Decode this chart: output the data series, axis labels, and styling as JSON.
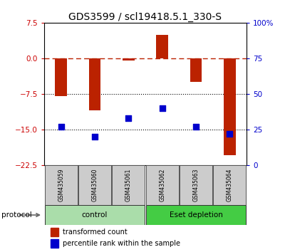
{
  "title": "GDS3599 / scl19418.5.1_330-S",
  "samples": [
    "GSM435059",
    "GSM435060",
    "GSM435061",
    "GSM435062",
    "GSM435063",
    "GSM435064"
  ],
  "red_values": [
    -8.0,
    -11.0,
    -0.5,
    5.0,
    -5.0,
    -20.5
  ],
  "blue_values": [
    27,
    20,
    33,
    40,
    27,
    22
  ],
  "ylim_left": [
    -22.5,
    7.5
  ],
  "ylim_right": [
    0,
    100
  ],
  "yticks_left": [
    7.5,
    0,
    -7.5,
    -15,
    -22.5
  ],
  "yticks_right": [
    100,
    75,
    50,
    25,
    0
  ],
  "ytick_labels_right": [
    "100%",
    "75",
    "50",
    "25",
    "0"
  ],
  "hlines_dotted": [
    -7.5,
    -15.0
  ],
  "hline_dash": 0.0,
  "bar_color": "#bb2200",
  "dot_color": "#0000cc",
  "bar_width": 0.35,
  "groups": [
    {
      "label": "control",
      "samples": [
        0,
        1,
        2
      ],
      "color": "#aaddaa"
    },
    {
      "label": "Eset depletion",
      "samples": [
        3,
        4,
        5
      ],
      "color": "#44cc44"
    }
  ],
  "protocol_label": "protocol",
  "legend_red": "transformed count",
  "legend_blue": "percentile rank within the sample",
  "background_color": "#ffffff",
  "plot_bg": "#ffffff",
  "left_tick_color": "#cc0000",
  "right_tick_color": "#0000cc",
  "title_fontsize": 10,
  "tick_fontsize": 7.5,
  "label_fontsize": 7.5
}
